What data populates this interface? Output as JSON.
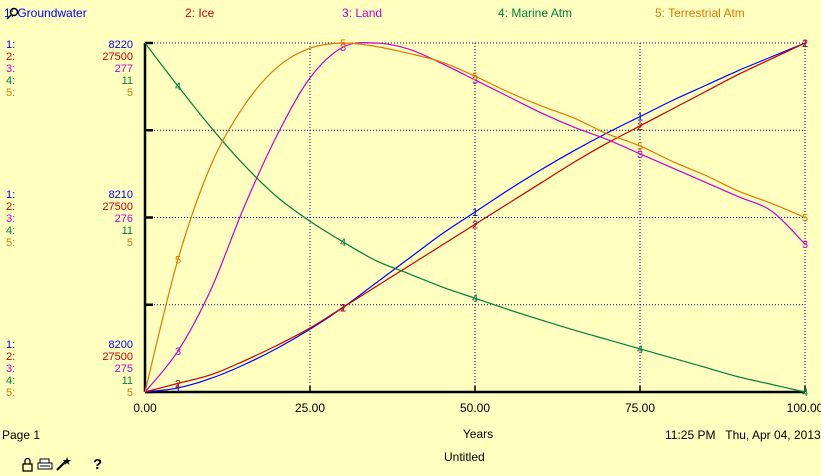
{
  "legend": [
    {
      "label": "1: Groundwater",
      "color": "#0000ff"
    },
    {
      "label": "2: Ice",
      "color": "#cc0000"
    },
    {
      "label": "3: Land",
      "color": "#cc00cc"
    },
    {
      "label": "4: Marine Atm",
      "color": "#008040"
    },
    {
      "label": "5: Terrestrial Atm",
      "color": "#e07800"
    }
  ],
  "scales": {
    "top": {
      "ids": [
        "1:",
        "2:",
        "3:",
        "4:",
        "5:"
      ],
      "values": [
        "8220",
        "27500",
        "277",
        "11",
        "5"
      ]
    },
    "middle": {
      "ids": [
        "1:",
        "2:",
        "3:",
        "4:",
        "5:"
      ],
      "values": [
        "8210",
        "27500",
        "276",
        "11",
        "5"
      ]
    },
    "bottom": {
      "ids": [
        "1:",
        "2:",
        "3:",
        "4:",
        "5:"
      ],
      "values": [
        "8200",
        "27500",
        "275",
        "11",
        "5"
      ]
    }
  },
  "chart_data": {
    "type": "line",
    "xlabel": "Years",
    "xlim": [
      0,
      100
    ],
    "xticks": [
      "0.00",
      "25.00",
      "50.00",
      "75.00",
      "100.00"
    ],
    "grid": true,
    "series": [
      {
        "name": "1: Groundwater",
        "marker": "1",
        "color": "#0000ff",
        "x": [
          0,
          5,
          10,
          15,
          20,
          25,
          30,
          35,
          40,
          45,
          50,
          55,
          60,
          65,
          70,
          75,
          80,
          85,
          90,
          95,
          100
        ],
        "y": [
          8200.0,
          8200.3,
          8201.0,
          8202.0,
          8203.2,
          8204.6,
          8206.2,
          8208.0,
          8209.8,
          8211.6,
          8213.2,
          8214.8,
          8216.3,
          8217.7,
          8219.0,
          8220.2,
          8221.4,
          8222.5,
          8223.6,
          8224.6,
          8225.6
        ]
      },
      {
        "name": "2: Ice",
        "marker": "2",
        "color": "#cc0000",
        "x": [
          0,
          5,
          10,
          15,
          20,
          25,
          30,
          35,
          40,
          45,
          50,
          55,
          60,
          65,
          70,
          75,
          80,
          85,
          90,
          95,
          100
        ],
        "y": [
          0.0,
          0.5,
          1.0,
          1.8,
          2.7,
          3.7,
          4.9,
          6.1,
          7.3,
          8.5,
          9.7,
          10.9,
          12.1,
          13.3,
          14.4,
          15.4,
          16.4,
          17.4,
          18.4,
          19.3,
          20.2
        ]
      },
      {
        "name": "3: Land",
        "marker": "3",
        "color": "#cc00cc",
        "x": [
          0,
          5,
          10,
          15,
          20,
          25,
          30,
          35,
          40,
          45,
          50,
          55,
          60,
          65,
          70,
          75,
          80,
          85,
          90,
          95,
          100
        ],
        "y": [
          275.0,
          275.2,
          275.5,
          275.9,
          276.25,
          276.53,
          276.68,
          276.7,
          276.67,
          276.6,
          276.52,
          276.44,
          276.36,
          276.29,
          276.23,
          276.16,
          276.09,
          276.02,
          275.95,
          275.88,
          275.72
        ]
      },
      {
        "name": "4: Marine Atm",
        "marker": "4",
        "color": "#008040",
        "x": [
          0,
          5,
          10,
          15,
          20,
          25,
          30,
          35,
          40,
          45,
          50,
          55,
          60,
          65,
          70,
          75,
          80,
          85,
          90,
          95,
          100
        ],
        "y": [
          1.0,
          0.885,
          0.775,
          0.675,
          0.59,
          0.525,
          0.47,
          0.42,
          0.385,
          0.35,
          0.32,
          0.29,
          0.262,
          0.235,
          0.21,
          0.185,
          0.16,
          0.135,
          0.11,
          0.09,
          0.07
        ]
      },
      {
        "name": "5: Terrestrial Atm",
        "marker": "5",
        "color": "#e07800",
        "x": [
          0,
          5,
          10,
          15,
          20,
          25,
          30,
          35,
          40,
          45,
          50,
          55,
          60,
          65,
          70,
          75,
          80,
          85,
          90,
          95,
          100
        ],
        "y": [
          0.0,
          0.38,
          0.65,
          0.82,
          0.93,
          0.985,
          1.0,
          0.99,
          0.97,
          0.945,
          0.905,
          0.86,
          0.82,
          0.785,
          0.74,
          0.705,
          0.66,
          0.62,
          0.575,
          0.54,
          0.5
        ]
      }
    ]
  },
  "footer": {
    "page_label": "Page 1",
    "time_label": "11:25 PM   Thu, Apr 04, 2013",
    "title": "Untitled",
    "help_label": "?"
  },
  "icons": {
    "header_icon": "pin-icon",
    "lock": "lock-icon",
    "print": "print-icon",
    "wand": "wand-icon"
  }
}
